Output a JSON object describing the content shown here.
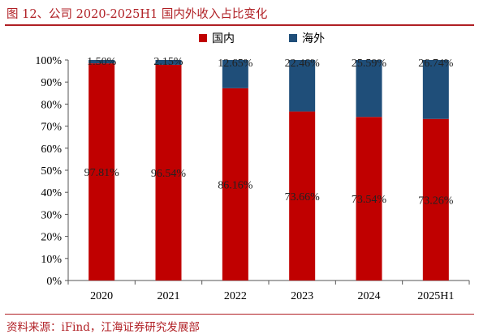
{
  "title": "图 12、公司 2020-2025H1 国内外收入占比变化",
  "source": "资料来源：iFind，江海证券研究发展部",
  "colors": {
    "domestic": "#c00000",
    "overseas": "#1f4e79",
    "accent": "#b01f24"
  },
  "chart_data": {
    "type": "bar",
    "stacked": true,
    "categories": [
      "2020",
      "2021",
      "2022",
      "2023",
      "2024",
      "2025H1"
    ],
    "series": [
      {
        "name": "国内",
        "values": [
          97.81,
          96.54,
          86.16,
          73.66,
          73.54,
          73.26
        ],
        "labels": [
          "97.81%",
          "96.54%",
          "86.16%",
          "73.66%",
          "73.54%",
          "73.26%"
        ]
      },
      {
        "name": "海外",
        "values": [
          1.5,
          2.15,
          12.65,
          22.46,
          25.59,
          26.74
        ],
        "labels": [
          "1.50%",
          "2.15%",
          "12.65%",
          "22.46%",
          "25.59%",
          "26.74%"
        ]
      }
    ],
    "yticks": [
      "0%",
      "10%",
      "20%",
      "30%",
      "40%",
      "50%",
      "60%",
      "70%",
      "80%",
      "90%",
      "100%"
    ],
    "ylim": [
      0,
      100
    ],
    "legend_position": "top",
    "grid": false
  }
}
